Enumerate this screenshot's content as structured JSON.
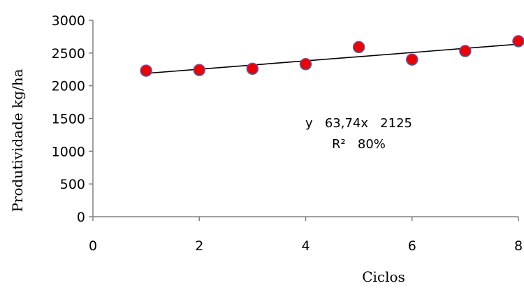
{
  "chart_data": {
    "type": "scatter",
    "xlabel": "Ciclos",
    "ylabel": "Produtividade kg/ha",
    "xlim": [
      0,
      8
    ],
    "ylim": [
      0,
      3000
    ],
    "xticks": [
      "0",
      "2",
      "4",
      "6",
      "8"
    ],
    "yticks": [
      "0",
      "500",
      "1000",
      "1500",
      "2000",
      "2500",
      "3000"
    ],
    "grid": false,
    "series": [
      {
        "marker_color": "#ee0000",
        "marker_edge_color": "#5a5ab0",
        "points": [
          {
            "x": 1,
            "y": 2230
          },
          {
            "x": 2,
            "y": 2240
          },
          {
            "x": 3,
            "y": 2260
          },
          {
            "x": 4,
            "y": 2330
          },
          {
            "x": 5,
            "y": 2590
          },
          {
            "x": 6,
            "y": 2400
          },
          {
            "x": 7,
            "y": 2530
          },
          {
            "x": 8,
            "y": 2680
          }
        ]
      }
    ],
    "trendline": {
      "x": [
        1,
        8
      ],
      "y": [
        2189,
        2635
      ],
      "color": "#000000"
    },
    "annotations": [
      {
        "text": "y   63,74x   2125"
      },
      {
        "text": "R²   80%"
      }
    ]
  }
}
